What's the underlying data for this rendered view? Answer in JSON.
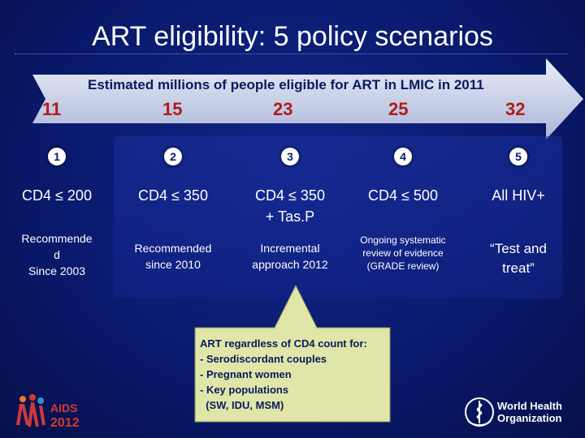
{
  "slide": {
    "title": "ART eligibility: 5 policy scenarios",
    "arrow_caption": "Estimated millions of people  eligible for  ART in LMIC in 2011",
    "estimates": [
      "11",
      "15",
      "23",
      "25",
      "32"
    ]
  },
  "scenarios": [
    {
      "badge": "1",
      "criterion": "CD4 ≤ 200",
      "status_lines": [
        "Recommende",
        "d",
        "Since 2003"
      ]
    },
    {
      "badge": "2",
      "criterion": "CD4 ≤ 350",
      "status_lines": [
        "Recommended",
        "since 2010"
      ]
    },
    {
      "badge": "3",
      "criterion_lines": [
        "CD4 ≤ 350",
        "+ Tas.P"
      ],
      "status_lines": [
        "Incremental",
        "approach 2012"
      ]
    },
    {
      "badge": "4",
      "criterion": "CD4 ≤ 500",
      "status_lines": [
        "Ongoing systematic",
        "review of evidence",
        "(GRADE review)"
      ]
    },
    {
      "badge": "5",
      "criterion": "All HIV+",
      "status_lines": [
        "“Test and",
        "treat”"
      ]
    }
  ],
  "callout": {
    "lines": [
      "ART regardless of CD4  count for:",
      "- Serodiscordant couples",
      "- Pregnant women",
      "- Key populations",
      "  (SW, IDU, MSM)"
    ]
  },
  "logos": {
    "aids_conference": {
      "line1": "AIDS",
      "line2": "2012"
    },
    "who": {
      "line1": "World Health",
      "line2": "Organization"
    }
  },
  "colors": {
    "background": "#0a1a6e",
    "arrow": "#c7d0e8",
    "estimate": "#b11b1b",
    "callout_bg": "#dfe6a8"
  }
}
